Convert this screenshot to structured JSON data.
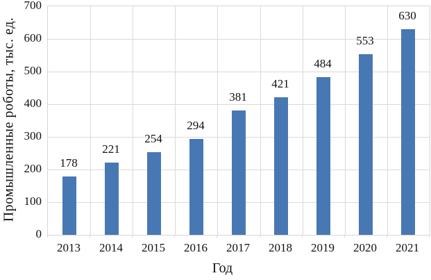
{
  "chart_data": {
    "type": "bar",
    "categories": [
      "2013",
      "2014",
      "2015",
      "2016",
      "2017",
      "2018",
      "2019",
      "2020",
      "2021"
    ],
    "values": [
      178,
      221,
      254,
      294,
      381,
      421,
      484,
      553,
      630
    ],
    "title": "",
    "xlabel": "Год",
    "ylabel": "Промышленные роботы, тыс. ед.",
    "ylim": [
      0,
      700
    ],
    "yticks": [
      0,
      100,
      200,
      300,
      400,
      500,
      600,
      700
    ],
    "grid": true,
    "legend_position": "none",
    "data_labels": true,
    "colors": {
      "bar_fill": "#4878B4",
      "gridline": "#d9d9d9",
      "plot_border": "#d6d6d6",
      "text": "#111111",
      "background": "#ffffff"
    }
  }
}
